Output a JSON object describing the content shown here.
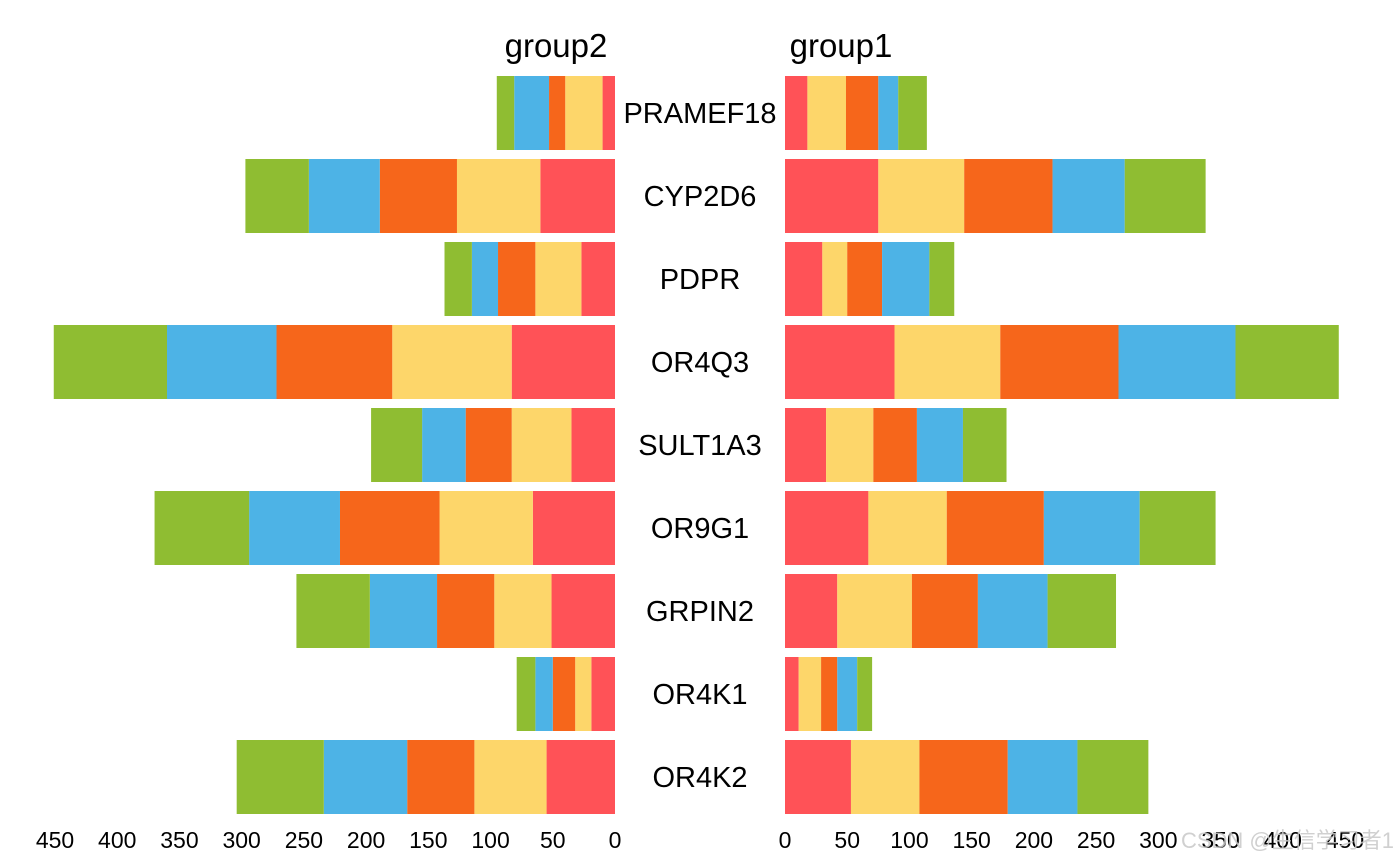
{
  "chart_data": {
    "type": "bar",
    "orientation": "horizontal",
    "layout": "mirrored-stacked",
    "panels": [
      {
        "name": "group2",
        "direction": "left",
        "xlim": [
          0,
          450
        ],
        "ticks": [
          450,
          400,
          350,
          300,
          250,
          200,
          150,
          100,
          50,
          0
        ]
      },
      {
        "name": "group1",
        "direction": "right",
        "xlim": [
          0,
          450
        ],
        "ticks": [
          0,
          50,
          100,
          150,
          200,
          250,
          300,
          350,
          400,
          450
        ]
      }
    ],
    "categories": [
      "PRAMEF18",
      "CYP2D6",
      "PDPR",
      "OR4Q3",
      "SULT1A3",
      "OR9G1",
      "GRPIN2",
      "OR4K1",
      "OR4K2"
    ],
    "segment_colors": [
      "#FF5257",
      "#FDD66A",
      "#F6661B",
      "#4DB3E6",
      "#8FBD32"
    ],
    "series": {
      "group2": [
        [
          10,
          30,
          13,
          28,
          14
        ],
        [
          60,
          67,
          62,
          57,
          51
        ],
        [
          27,
          37,
          30,
          21,
          22
        ],
        [
          83,
          96,
          93,
          88,
          91
        ],
        [
          35,
          48,
          37,
          35,
          41
        ],
        [
          66,
          75,
          80,
          73,
          76
        ],
        [
          51,
          46,
          46,
          54,
          59
        ],
        [
          19,
          13,
          18,
          14,
          15
        ],
        [
          55,
          58,
          54,
          67,
          70
        ]
      ],
      "group1": [
        [
          18,
          31,
          26,
          16,
          23
        ],
        [
          75,
          69,
          71,
          58,
          65
        ],
        [
          30,
          20,
          28,
          38,
          20
        ],
        [
          88,
          85,
          95,
          94,
          83
        ],
        [
          33,
          38,
          35,
          37,
          35
        ],
        [
          67,
          63,
          78,
          77,
          61
        ],
        [
          42,
          60,
          53,
          56,
          55
        ],
        [
          11,
          18,
          13,
          16,
          12
        ],
        [
          53,
          55,
          71,
          56,
          57
        ]
      ]
    }
  },
  "watermark": "CSDN @生信学习者1"
}
